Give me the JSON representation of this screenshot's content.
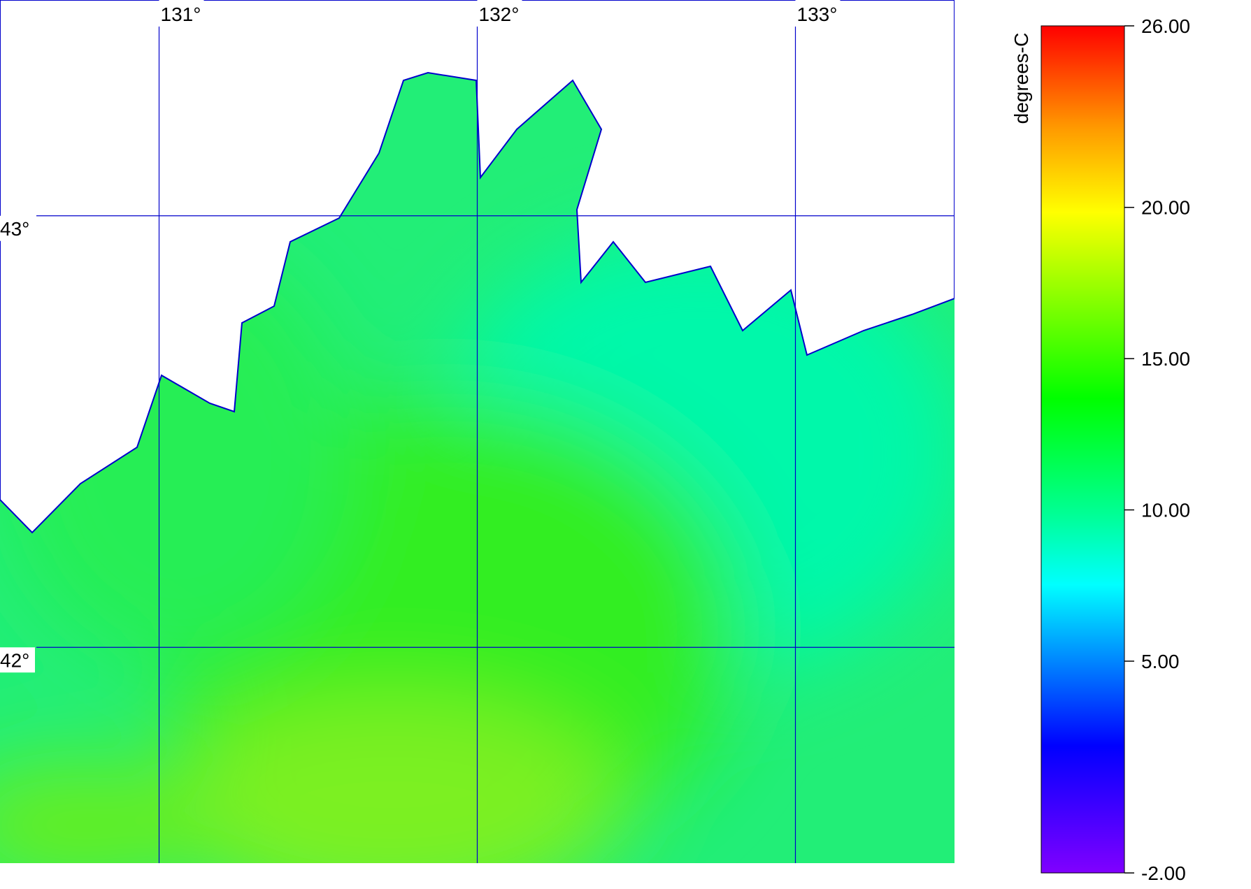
{
  "map": {
    "lon_range": [
      130.5,
      133.5
    ],
    "lat_range": [
      41.5,
      43.5
    ],
    "lon_ticks": [
      {
        "value": 131,
        "label": "131°"
      },
      {
        "value": 132,
        "label": "132°"
      },
      {
        "value": 133,
        "label": "133°"
      }
    ],
    "lat_ticks": [
      {
        "value": 43,
        "label": "43°"
      },
      {
        "value": 42,
        "label": "42°"
      }
    ]
  },
  "colorbar": {
    "label": "degrees-C",
    "range": [
      -2,
      26
    ],
    "ticks": [
      {
        "value": 26,
        "label": "26.00"
      },
      {
        "value": 20,
        "label": "20.00"
      },
      {
        "value": 15,
        "label": "15.00"
      },
      {
        "value": 10,
        "label": "10.00"
      },
      {
        "value": 5,
        "label": "5.00"
      },
      {
        "value": -2,
        "label": "-2.00"
      }
    ]
  }
}
